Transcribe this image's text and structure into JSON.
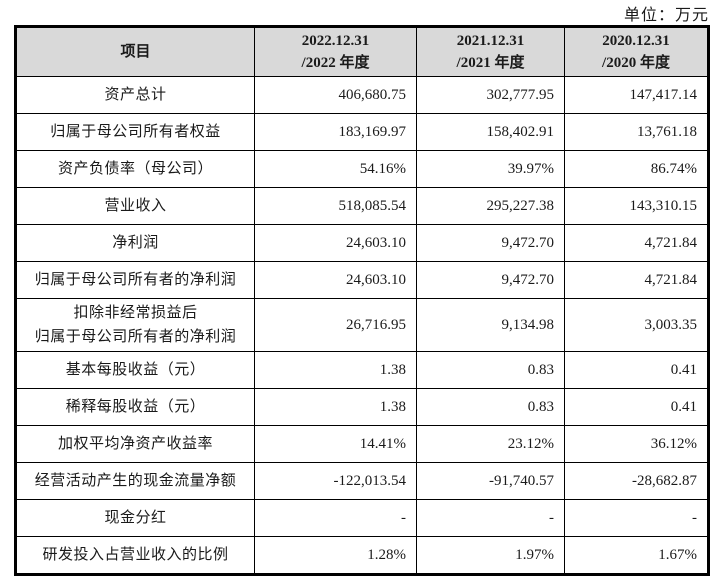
{
  "page": {
    "unit_label": "单位：万元"
  },
  "colors": {
    "header_bg": "#d9d9d9",
    "border": "#000000",
    "text": "#1a1a1a"
  },
  "table": {
    "header": {
      "item": "项目",
      "periods": [
        "2022.12.31\n/2022 年度",
        "2021.12.31\n/2021 年度",
        "2020.12.31\n/2020 年度"
      ]
    },
    "rows": [
      {
        "label": "资产总计",
        "values": [
          "406,680.75",
          "302,777.95",
          "147,417.14"
        ]
      },
      {
        "label": "归属于母公司所有者权益",
        "values": [
          "183,169.97",
          "158,402.91",
          "13,761.18"
        ]
      },
      {
        "label": "资产负债率（母公司）",
        "values": [
          "54.16%",
          "39.97%",
          "86.74%"
        ]
      },
      {
        "label": "营业收入",
        "values": [
          "518,085.54",
          "295,227.38",
          "143,310.15"
        ]
      },
      {
        "label": "净利润",
        "values": [
          "24,603.10",
          "9,472.70",
          "4,721.84"
        ]
      },
      {
        "label": "归属于母公司所有者的净利润",
        "values": [
          "24,603.10",
          "9,472.70",
          "4,721.84"
        ]
      },
      {
        "label": "扣除非经常损益后\n归属于母公司所有者的净利润",
        "values": [
          "26,716.95",
          "9,134.98",
          "3,003.35"
        ]
      },
      {
        "label": "基本每股收益（元）",
        "values": [
          "1.38",
          "0.83",
          "0.41"
        ]
      },
      {
        "label": "稀释每股收益（元）",
        "values": [
          "1.38",
          "0.83",
          "0.41"
        ]
      },
      {
        "label": "加权平均净资产收益率",
        "values": [
          "14.41%",
          "23.12%",
          "36.12%"
        ]
      },
      {
        "label": "经营活动产生的现金流量净额",
        "values": [
          "-122,013.54",
          "-91,740.57",
          "-28,682.87"
        ]
      },
      {
        "label": "现金分红",
        "values": [
          "-",
          "-",
          "-"
        ]
      },
      {
        "label": "研发投入占营业收入的比例",
        "values": [
          "1.28%",
          "1.97%",
          "1.67%"
        ]
      }
    ]
  }
}
